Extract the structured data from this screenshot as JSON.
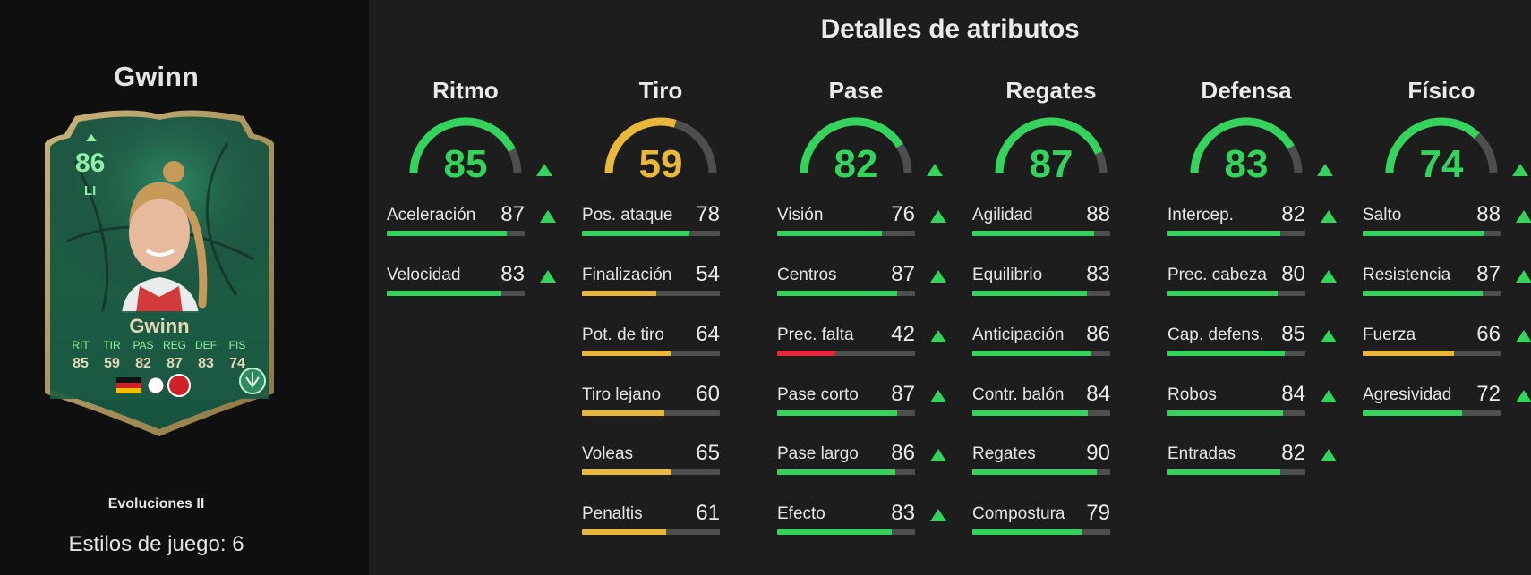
{
  "header": {
    "title": "Detalles de atributos"
  },
  "colors": {
    "green": "#34d35b",
    "yellow": "#e9b83a",
    "red": "#e5283a",
    "track": "#4d4f4d"
  },
  "player": {
    "name": "Gwinn",
    "card": {
      "overall": "86",
      "position": "LI",
      "name": "Gwinn",
      "stat_labels": [
        "RIT",
        "TIR",
        "PAS",
        "REG",
        "DEF",
        "FIS"
      ],
      "stat_values": [
        "85",
        "59",
        "82",
        "87",
        "83",
        "74"
      ],
      "nation_flag": "germany-flag",
      "league_badge": "league-badge",
      "club_badge": "bayern-munich-badge",
      "playstyle_icon": "playstyle-plus-icon"
    },
    "edition": "Evoluciones II",
    "playstyles": "Estilos de juego: 6"
  },
  "categories": [
    {
      "title": "Ritmo",
      "value": "85",
      "upgraded": true,
      "color": "#34d35b",
      "stats": [
        {
          "name": "Aceleración",
          "value": "87",
          "upgraded": true,
          "color": "#34d35b"
        },
        {
          "name": "Velocidad",
          "value": "83",
          "upgraded": true,
          "color": "#34d35b"
        }
      ]
    },
    {
      "title": "Tiro",
      "value": "59",
      "upgraded": false,
      "color": "#e9b83a",
      "stats": [
        {
          "name": "Pos. ataque",
          "value": "78",
          "upgraded": false,
          "color": "#34d35b"
        },
        {
          "name": "Finalización",
          "value": "54",
          "upgraded": false,
          "color": "#e9b83a"
        },
        {
          "name": "Pot. de tiro",
          "value": "64",
          "upgraded": false,
          "color": "#e9b83a"
        },
        {
          "name": "Tiro lejano",
          "value": "60",
          "upgraded": false,
          "color": "#e9b83a"
        },
        {
          "name": "Voleas",
          "value": "65",
          "upgraded": false,
          "color": "#e9b83a"
        },
        {
          "name": "Penaltis",
          "value": "61",
          "upgraded": false,
          "color": "#e9b83a"
        }
      ]
    },
    {
      "title": "Pase",
      "value": "82",
      "upgraded": true,
      "color": "#34d35b",
      "stats": [
        {
          "name": "Visión",
          "value": "76",
          "upgraded": true,
          "color": "#34d35b"
        },
        {
          "name": "Centros",
          "value": "87",
          "upgraded": true,
          "color": "#34d35b"
        },
        {
          "name": "Prec. falta",
          "value": "42",
          "upgraded": true,
          "color": "#e5283a"
        },
        {
          "name": "Pase corto",
          "value": "87",
          "upgraded": true,
          "color": "#34d35b"
        },
        {
          "name": "Pase largo",
          "value": "86",
          "upgraded": true,
          "color": "#34d35b"
        },
        {
          "name": "Efecto",
          "value": "83",
          "upgraded": true,
          "color": "#34d35b"
        }
      ]
    },
    {
      "title": "Regates",
      "value": "87",
      "upgraded": false,
      "color": "#34d35b",
      "stats": [
        {
          "name": "Agilidad",
          "value": "88",
          "upgraded": false,
          "color": "#34d35b"
        },
        {
          "name": "Equilibrio",
          "value": "83",
          "upgraded": false,
          "color": "#34d35b"
        },
        {
          "name": "Anticipación",
          "value": "86",
          "upgraded": false,
          "color": "#34d35b"
        },
        {
          "name": "Contr. balón",
          "value": "84",
          "upgraded": false,
          "color": "#34d35b"
        },
        {
          "name": "Regates",
          "value": "90",
          "upgraded": false,
          "color": "#34d35b"
        },
        {
          "name": "Compostura",
          "value": "79",
          "upgraded": false,
          "color": "#34d35b"
        }
      ]
    },
    {
      "title": "Defensa",
      "value": "83",
      "upgraded": true,
      "color": "#34d35b",
      "stats": [
        {
          "name": "Intercep.",
          "value": "82",
          "upgraded": true,
          "color": "#34d35b"
        },
        {
          "name": "Prec. cabeza",
          "value": "80",
          "upgraded": true,
          "color": "#34d35b"
        },
        {
          "name": "Cap. defens.",
          "value": "85",
          "upgraded": true,
          "color": "#34d35b"
        },
        {
          "name": "Robos",
          "value": "84",
          "upgraded": true,
          "color": "#34d35b"
        },
        {
          "name": "Entradas",
          "value": "82",
          "upgraded": true,
          "color": "#34d35b"
        }
      ]
    },
    {
      "title": "Físico",
      "value": "74",
      "upgraded": true,
      "color": "#34d35b",
      "stats": [
        {
          "name": "Salto",
          "value": "88",
          "upgraded": true,
          "color": "#34d35b"
        },
        {
          "name": "Resistencia",
          "value": "87",
          "upgraded": true,
          "color": "#34d35b"
        },
        {
          "name": "Fuerza",
          "value": "66",
          "upgraded": true,
          "color": "#e9b83a"
        },
        {
          "name": "Agresividad",
          "value": "72",
          "upgraded": true,
          "color": "#34d35b"
        }
      ]
    }
  ]
}
